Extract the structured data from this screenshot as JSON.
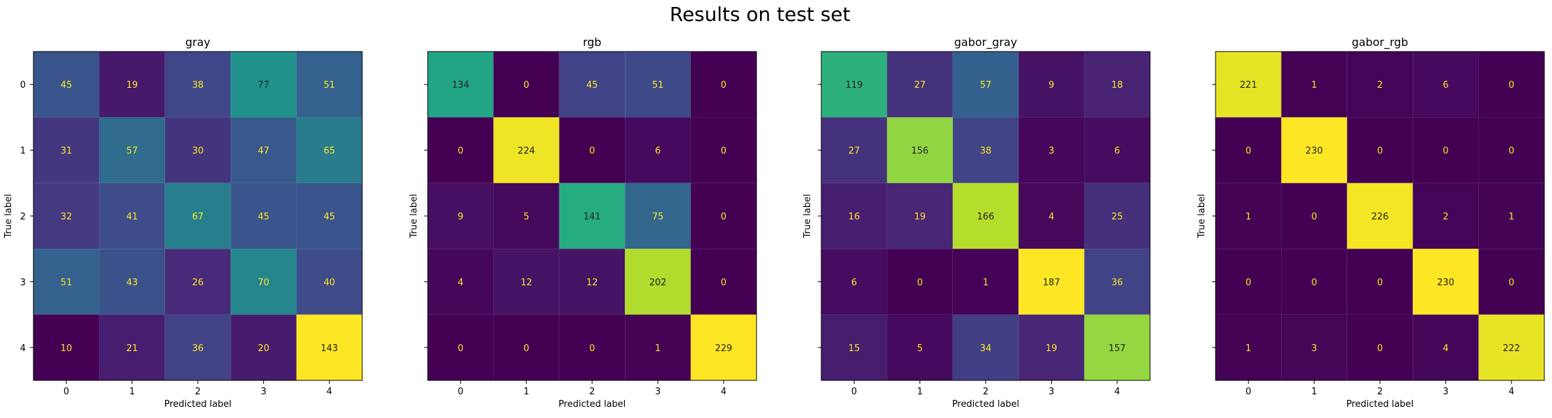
{
  "figure": {
    "title": "Results on test set"
  },
  "chart_data": [
    {
      "type": "heatmap",
      "title": "gray",
      "xlabel": "Predicted label",
      "ylabel": "True label",
      "x_ticks": [
        "0",
        "1",
        "2",
        "3",
        "4"
      ],
      "y_ticks": [
        "0",
        "1",
        "2",
        "3",
        "4"
      ],
      "matrix": [
        [
          45,
          19,
          38,
          77,
          51
        ],
        [
          31,
          57,
          30,
          47,
          65
        ],
        [
          32,
          41,
          67,
          45,
          45
        ],
        [
          51,
          43,
          26,
          70,
          40
        ],
        [
          10,
          21,
          36,
          20,
          143
        ]
      ],
      "colormap": "viridis",
      "grid": false
    },
    {
      "type": "heatmap",
      "title": "rgb",
      "xlabel": "Predicted label",
      "ylabel": "True label",
      "x_ticks": [
        "0",
        "1",
        "2",
        "3",
        "4"
      ],
      "y_ticks": [
        "0",
        "1",
        "2",
        "3",
        "4"
      ],
      "matrix": [
        [
          134,
          0,
          45,
          51,
          0
        ],
        [
          0,
          224,
          0,
          6,
          0
        ],
        [
          9,
          5,
          141,
          75,
          0
        ],
        [
          4,
          12,
          12,
          202,
          0
        ],
        [
          0,
          0,
          0,
          1,
          229
        ]
      ],
      "colormap": "viridis",
      "grid": false
    },
    {
      "type": "heatmap",
      "title": "gabor_gray",
      "xlabel": "Predicted label",
      "ylabel": "True label",
      "x_ticks": [
        "0",
        "1",
        "2",
        "3",
        "4"
      ],
      "y_ticks": [
        "0",
        "1",
        "2",
        "3",
        "4"
      ],
      "matrix": [
        [
          119,
          27,
          57,
          9,
          18
        ],
        [
          27,
          156,
          38,
          3,
          6
        ],
        [
          16,
          19,
          166,
          4,
          25
        ],
        [
          6,
          0,
          1,
          187,
          36
        ],
        [
          15,
          5,
          34,
          19,
          157
        ]
      ],
      "colormap": "viridis",
      "grid": false
    },
    {
      "type": "heatmap",
      "title": "gabor_rgb",
      "xlabel": "Predicted label",
      "ylabel": "True label",
      "x_ticks": [
        "0",
        "1",
        "2",
        "3",
        "4"
      ],
      "y_ticks": [
        "0",
        "1",
        "2",
        "3",
        "4"
      ],
      "matrix": [
        [
          221,
          1,
          2,
          6,
          0
        ],
        [
          0,
          230,
          0,
          0,
          0
        ],
        [
          1,
          0,
          226,
          2,
          1
        ],
        [
          0,
          0,
          0,
          230,
          0
        ],
        [
          1,
          3,
          0,
          4,
          222
        ]
      ],
      "colormap": "viridis",
      "grid": false
    }
  ]
}
